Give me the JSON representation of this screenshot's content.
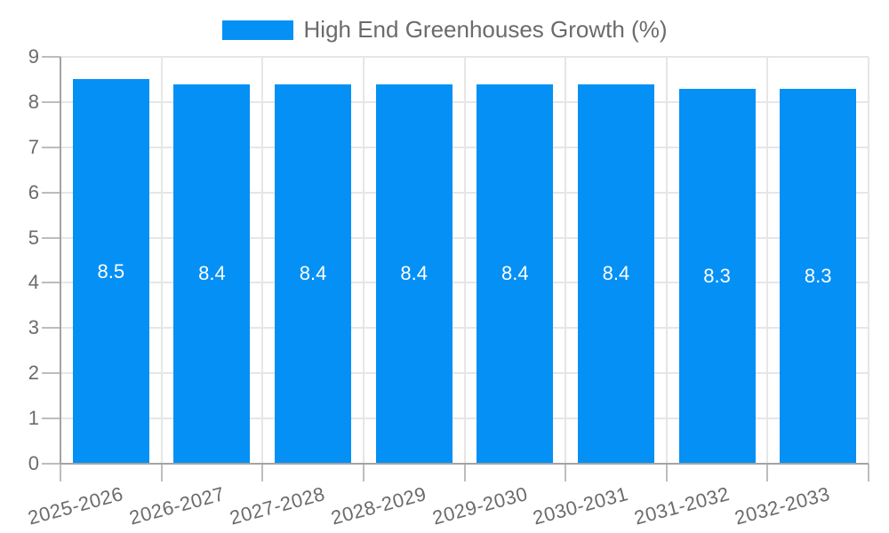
{
  "chart_data": {
    "type": "bar",
    "title": "",
    "legend": {
      "label": "High End Greenhouses Growth (%)",
      "position": "top-center"
    },
    "categories": [
      "2025-2026",
      "2026-2027",
      "2027-2028",
      "2028-2029",
      "2029-2030",
      "2030-2031",
      "2031-2032",
      "2032-2033"
    ],
    "series": [
      {
        "name": "High End Greenhouses Growth (%)",
        "values": [
          8.5,
          8.4,
          8.4,
          8.4,
          8.4,
          8.4,
          8.3,
          8.3
        ]
      }
    ],
    "bar_labels": [
      "8.5",
      "8.4",
      "8.4",
      "8.4",
      "8.4",
      "8.4",
      "8.3",
      "8.3"
    ],
    "xlabel": "",
    "ylabel": "",
    "ylim": [
      0,
      9
    ],
    "y_ticks": [
      0,
      1,
      2,
      3,
      4,
      5,
      6,
      7,
      8,
      9
    ],
    "grid": true,
    "x_tick_rotation_deg": -15,
    "colors": {
      "bar": "#0590f5",
      "bar_label": "#ffffff",
      "grid": "#e6e6e6",
      "axis": "#a3a3a3",
      "tick": "#bdbdbd",
      "label_text": "#6b6b6b",
      "background": "#ffffff"
    }
  }
}
